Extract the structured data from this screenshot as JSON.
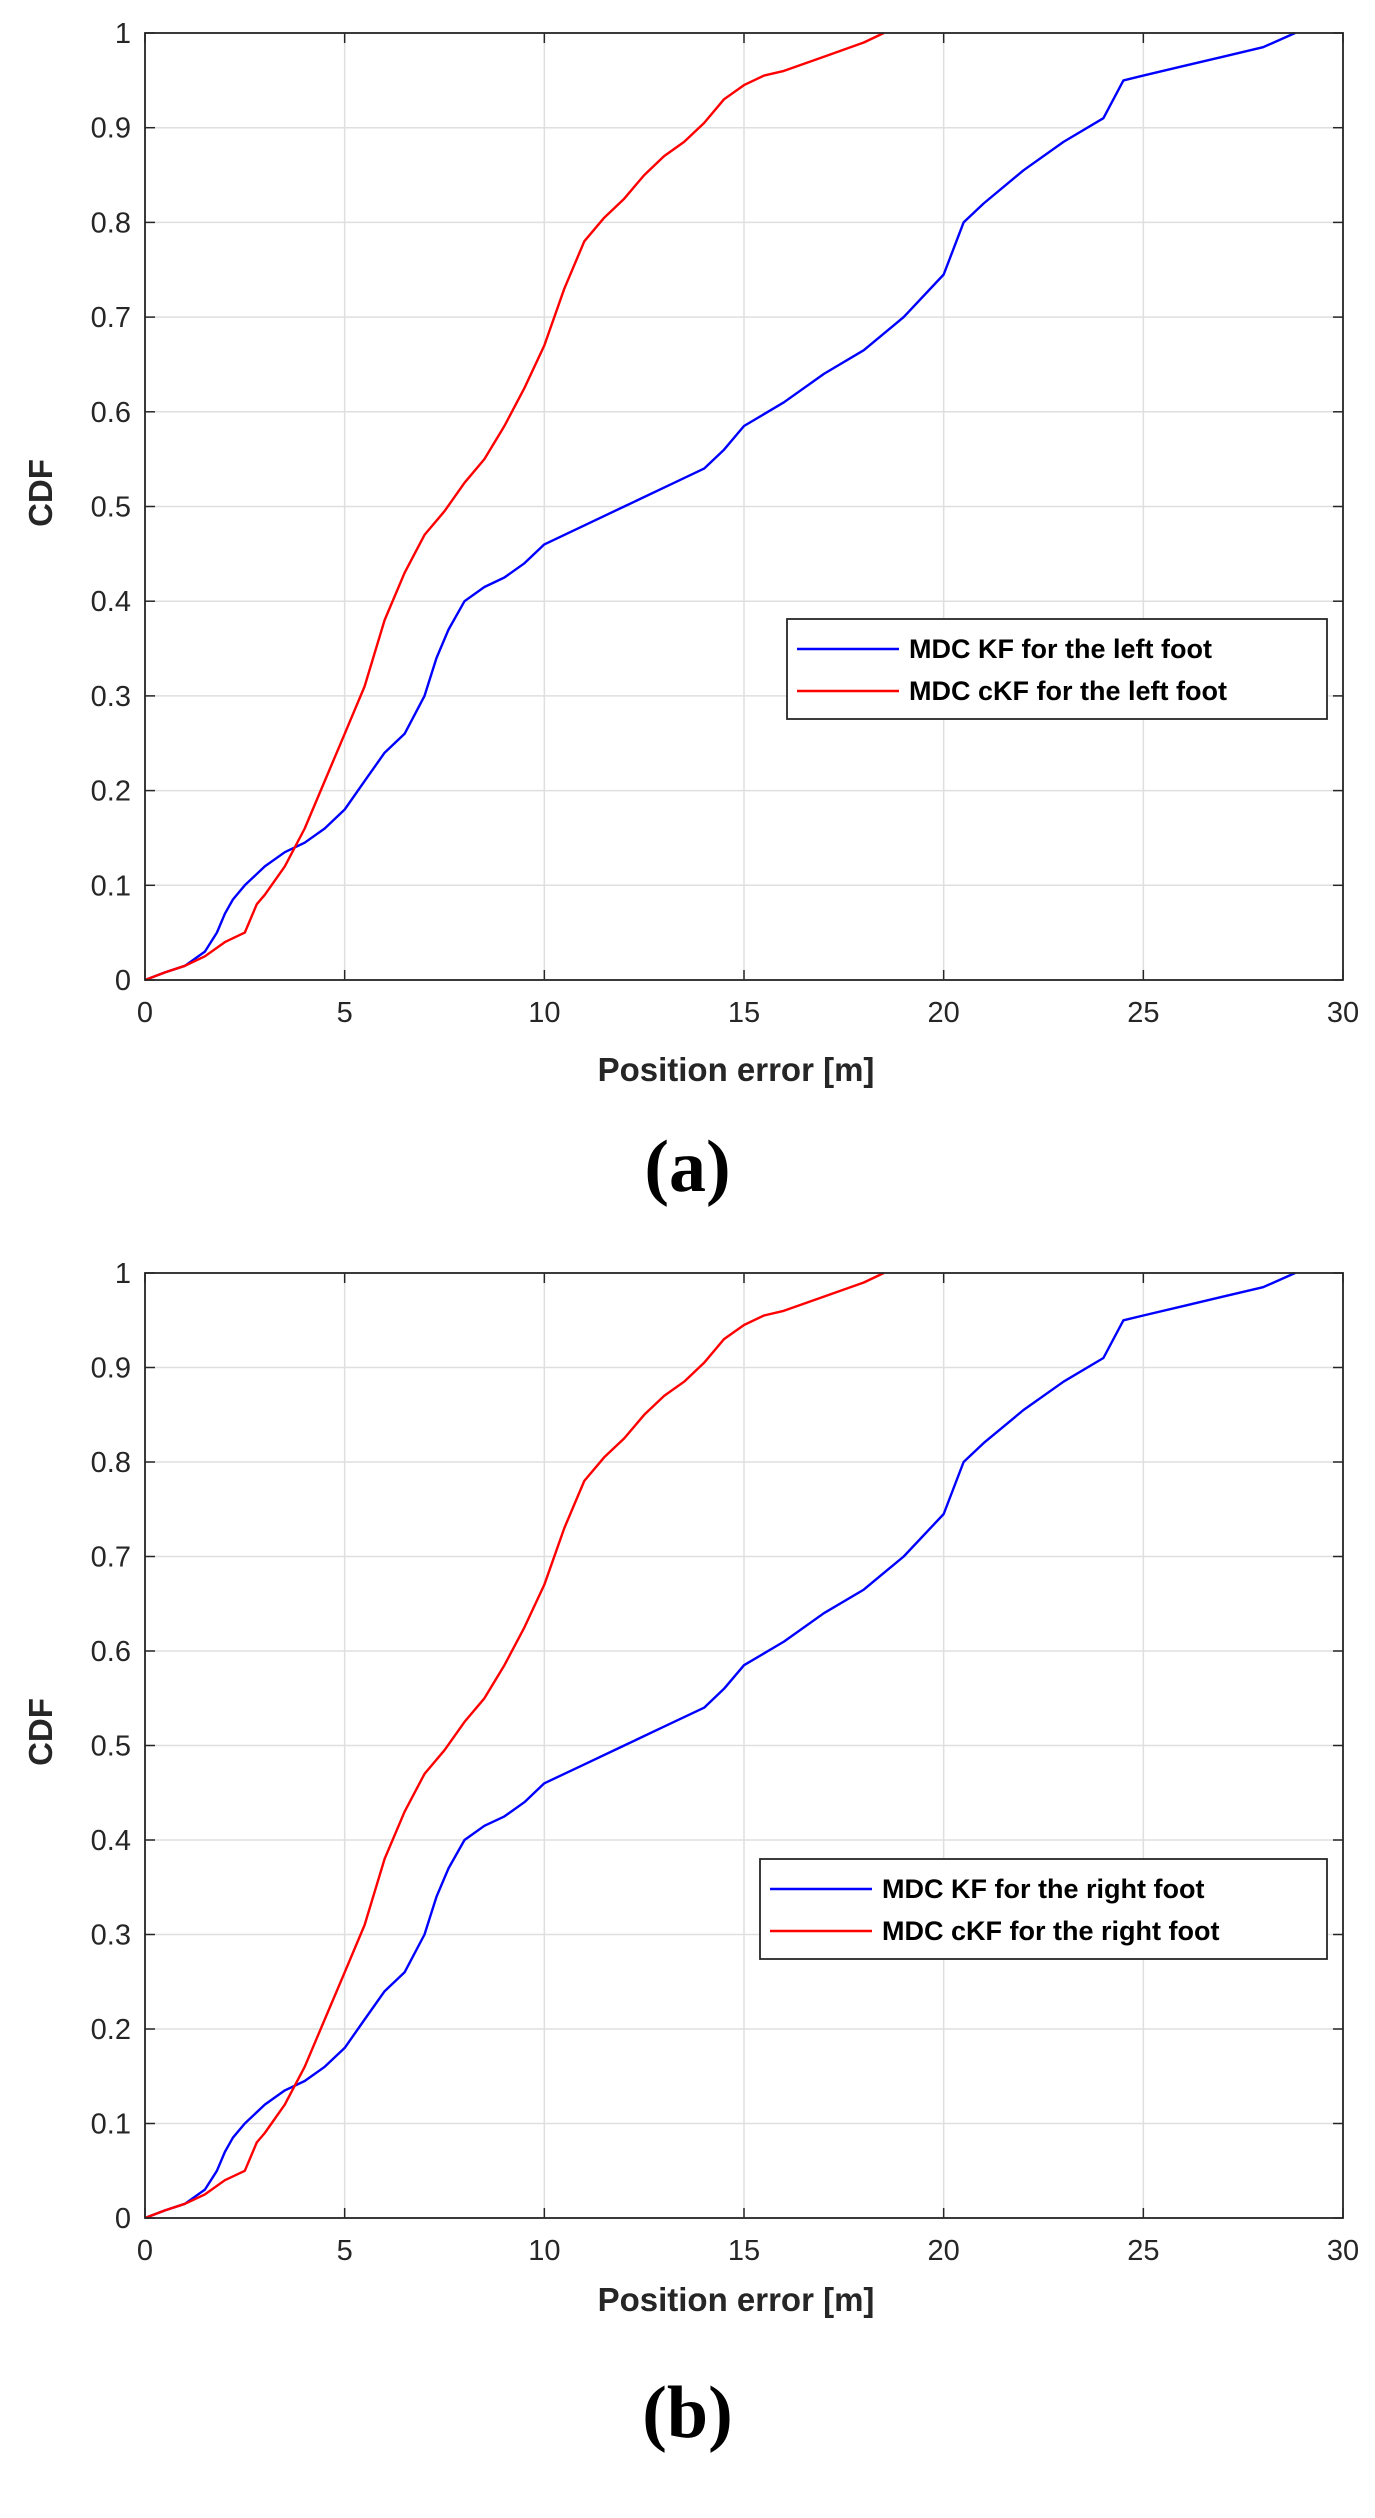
{
  "chart_data": [
    {
      "type": "line",
      "caption": "(a)",
      "xlabel": "Position error [m]",
      "ylabel": "CDF",
      "xlim": [
        0,
        30
      ],
      "ylim": [
        0,
        1
      ],
      "xticks": [
        "0",
        "5",
        "10",
        "15",
        "20",
        "25",
        "30"
      ],
      "yticks": [
        "0",
        "0.1",
        "0.2",
        "0.3",
        "0.4",
        "0.5",
        "0.6",
        "0.7",
        "0.8",
        "0.9",
        "1"
      ],
      "grid": true,
      "legend_position": "middle-right",
      "series": [
        {
          "name": "MDC KF for the left foot",
          "color": "#0000ff",
          "x": [
            0,
            0.5,
            1,
            1.5,
            1.8,
            2,
            2.2,
            2.5,
            3,
            3.5,
            4,
            4.5,
            5,
            5.5,
            6,
            6.5,
            7,
            7.3,
            7.6,
            8,
            8.5,
            9,
            9.5,
            10,
            11,
            12,
            13,
            14,
            14.5,
            15,
            16,
            17,
            18,
            19,
            20,
            20.5,
            21,
            22,
            23,
            24,
            24.5,
            25,
            26,
            27,
            28,
            28.8
          ],
          "y": [
            0,
            0.008,
            0.015,
            0.03,
            0.05,
            0.07,
            0.085,
            0.1,
            0.12,
            0.135,
            0.145,
            0.16,
            0.18,
            0.21,
            0.24,
            0.26,
            0.3,
            0.34,
            0.37,
            0.4,
            0.415,
            0.425,
            0.44,
            0.46,
            0.48,
            0.5,
            0.52,
            0.54,
            0.56,
            0.585,
            0.61,
            0.64,
            0.665,
            0.7,
            0.745,
            0.8,
            0.82,
            0.855,
            0.885,
            0.91,
            0.95,
            0.955,
            0.965,
            0.975,
            0.985,
            1.0
          ]
        },
        {
          "name": "MDC cKF for the left foot",
          "color": "#ff0000",
          "x": [
            0,
            0.5,
            1,
            1.5,
            2,
            2.5,
            2.8,
            3,
            3.5,
            4,
            4.5,
            5,
            5.5,
            6,
            6.5,
            7,
            7.5,
            8,
            8.5,
            9,
            9.5,
            10,
            10.5,
            11,
            11.5,
            12,
            12.5,
            13,
            13.5,
            14,
            14.5,
            15,
            15.5,
            16,
            17,
            18,
            18.5
          ],
          "y": [
            0,
            0.008,
            0.015,
            0.025,
            0.04,
            0.05,
            0.08,
            0.09,
            0.12,
            0.16,
            0.21,
            0.26,
            0.31,
            0.38,
            0.43,
            0.47,
            0.495,
            0.525,
            0.55,
            0.585,
            0.625,
            0.67,
            0.73,
            0.78,
            0.805,
            0.825,
            0.85,
            0.87,
            0.885,
            0.905,
            0.93,
            0.945,
            0.955,
            0.96,
            0.975,
            0.99,
            1.0
          ]
        }
      ]
    },
    {
      "type": "line",
      "caption": "(b)",
      "xlabel": "Position error [m]",
      "ylabel": "CDF",
      "xlim": [
        0,
        30
      ],
      "ylim": [
        0,
        1
      ],
      "xticks": [
        "0",
        "5",
        "10",
        "15",
        "20",
        "25",
        "30"
      ],
      "yticks": [
        "0",
        "0.1",
        "0.2",
        "0.3",
        "0.4",
        "0.5",
        "0.6",
        "0.7",
        "0.8",
        "0.9",
        "1"
      ],
      "grid": true,
      "legend_position": "middle-right",
      "series": [
        {
          "name": "MDC KF for the right foot",
          "color": "#0000ff",
          "x": [
            0,
            0.5,
            1,
            1.5,
            1.8,
            2,
            2.2,
            2.5,
            3,
            3.5,
            4,
            4.5,
            5,
            5.5,
            6,
            6.5,
            7,
            7.3,
            7.6,
            8,
            8.5,
            9,
            9.5,
            10,
            11,
            12,
            13,
            14,
            14.5,
            15,
            16,
            17,
            18,
            19,
            20,
            20.5,
            21,
            22,
            23,
            24,
            24.5,
            25,
            26,
            27,
            28,
            28.8
          ],
          "y": [
            0,
            0.008,
            0.015,
            0.03,
            0.05,
            0.07,
            0.085,
            0.1,
            0.12,
            0.135,
            0.145,
            0.16,
            0.18,
            0.21,
            0.24,
            0.26,
            0.3,
            0.34,
            0.37,
            0.4,
            0.415,
            0.425,
            0.44,
            0.46,
            0.48,
            0.5,
            0.52,
            0.54,
            0.56,
            0.585,
            0.61,
            0.64,
            0.665,
            0.7,
            0.745,
            0.8,
            0.82,
            0.855,
            0.885,
            0.91,
            0.95,
            0.955,
            0.965,
            0.975,
            0.985,
            1.0
          ]
        },
        {
          "name": "MDC cKF for the right foot",
          "color": "#ff0000",
          "x": [
            0,
            0.5,
            1,
            1.5,
            2,
            2.5,
            2.8,
            3,
            3.5,
            4,
            4.5,
            5,
            5.5,
            6,
            6.5,
            7,
            7.5,
            8,
            8.5,
            9,
            9.5,
            10,
            10.5,
            11,
            11.5,
            12,
            12.5,
            13,
            13.5,
            14,
            14.5,
            15,
            15.5,
            16,
            17,
            18,
            18.5
          ],
          "y": [
            0,
            0.008,
            0.015,
            0.025,
            0.04,
            0.05,
            0.08,
            0.09,
            0.12,
            0.16,
            0.21,
            0.26,
            0.31,
            0.38,
            0.43,
            0.47,
            0.495,
            0.525,
            0.55,
            0.585,
            0.625,
            0.67,
            0.73,
            0.78,
            0.805,
            0.825,
            0.85,
            0.87,
            0.885,
            0.905,
            0.93,
            0.945,
            0.955,
            0.96,
            0.975,
            0.99,
            1.0
          ]
        }
      ]
    }
  ]
}
